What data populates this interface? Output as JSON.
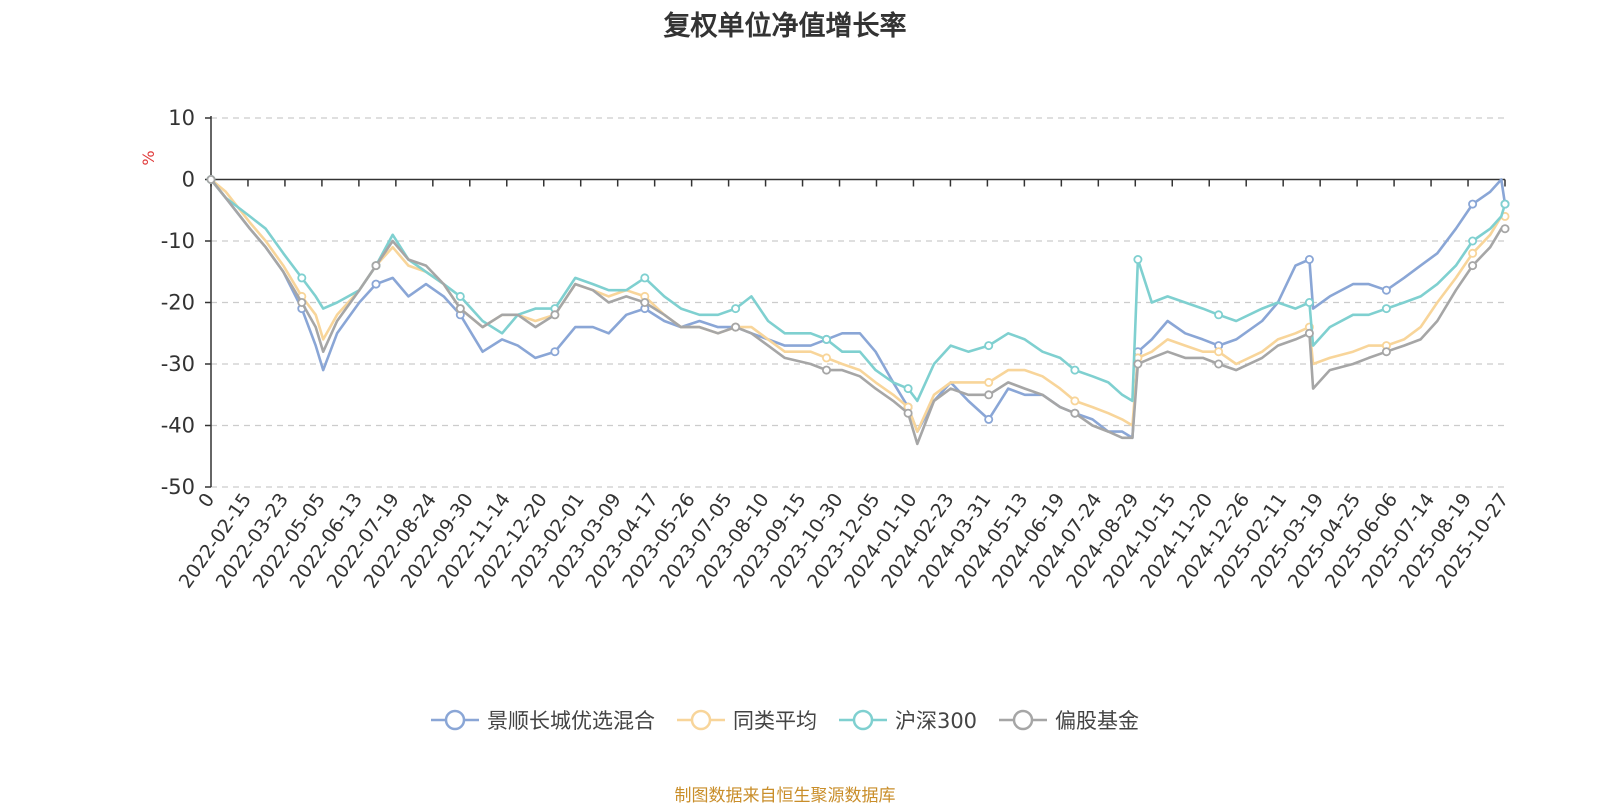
{
  "chart_data": {
    "type": "line",
    "title": "复权单位净值增长率",
    "ylabel": "%",
    "xlabel": "",
    "ylim": [
      -50,
      10
    ],
    "yticks": [
      10,
      0,
      -10,
      -20,
      -30,
      -40,
      -50
    ],
    "grid": "horizontal dashed",
    "legend_position": "bottom",
    "x_tick_labels": [
      "0",
      "2022-02-15",
      "2022-03-23",
      "2022-05-05",
      "2022-06-13",
      "2022-07-19",
      "2022-08-24",
      "2022-09-30",
      "2022-11-14",
      "2022-12-20",
      "2023-02-01",
      "2023-03-09",
      "2023-04-17",
      "2023-05-26",
      "2023-07-05",
      "2023-08-10",
      "2023-09-15",
      "2023-10-30",
      "2023-12-05",
      "2024-01-10",
      "2024-02-23",
      "2024-03-31",
      "2024-05-13",
      "2024-06-19",
      "2024-07-24",
      "2024-08-29",
      "2024-10-15",
      "2024-11-20",
      "2024-12-26",
      "2025-02-11",
      "2025-03-19",
      "2025-04-25",
      "2025-06-06",
      "2025-07-14",
      "2025-08-19",
      "2025-10-27"
    ],
    "x": [
      "2022-01-04",
      "2022-01-20",
      "2022-02-15",
      "2022-03-04",
      "2022-03-23",
      "2022-04-12",
      "2022-04-27",
      "2022-05-05",
      "2022-05-20",
      "2022-06-13",
      "2022-07-01",
      "2022-07-19",
      "2022-08-05",
      "2022-08-24",
      "2022-09-12",
      "2022-09-30",
      "2022-10-24",
      "2022-11-14",
      "2022-12-01",
      "2022-12-20",
      "2023-01-10",
      "2023-02-01",
      "2023-02-20",
      "2023-03-09",
      "2023-03-28",
      "2023-04-17",
      "2023-05-08",
      "2023-05-26",
      "2023-06-15",
      "2023-07-05",
      "2023-07-24",
      "2023-08-10",
      "2023-08-28",
      "2023-09-15",
      "2023-10-13",
      "2023-10-30",
      "2023-11-16",
      "2023-12-05",
      "2023-12-22",
      "2024-01-10",
      "2024-01-26",
      "2024-02-05",
      "2024-02-23",
      "2024-03-12",
      "2024-03-31",
      "2024-04-22",
      "2024-05-13",
      "2024-05-31",
      "2024-06-19",
      "2024-07-08",
      "2024-07-24",
      "2024-08-12",
      "2024-08-29",
      "2024-09-13",
      "2024-09-24",
      "2024-09-30",
      "2024-10-15",
      "2024-11-01",
      "2024-11-20",
      "2024-12-09",
      "2024-12-26",
      "2025-01-14",
      "2025-02-11",
      "2025-02-28",
      "2025-03-19",
      "2025-04-03",
      "2025-04-07",
      "2025-04-25",
      "2025-05-20",
      "2025-06-06",
      "2025-06-25",
      "2025-07-14",
      "2025-08-01",
      "2025-08-19",
      "2025-09-08",
      "2025-09-26",
      "2025-10-15",
      "2025-10-27",
      "2025-10-31"
    ],
    "series": [
      {
        "name": "景顺长城优选混合",
        "color": "#8aa6d6",
        "values": [
          0,
          -3,
          -8,
          -11,
          -15,
          -21,
          -27,
          -31,
          -25,
          -20,
          -17,
          -16,
          -19,
          -17,
          -19,
          -22,
          -28,
          -26,
          -27,
          -29,
          -28,
          -24,
          -24,
          -25,
          -22,
          -21,
          -23,
          -24,
          -23,
          -24,
          -24,
          -25,
          -26,
          -27,
          -27,
          -26,
          -25,
          -25,
          -28,
          -33,
          -37,
          -41,
          -36,
          -33,
          -36,
          -39,
          -34,
          -35,
          -35,
          -37,
          -38,
          -39,
          -41,
          -41,
          -42,
          -28,
          -26,
          -23,
          -25,
          -26,
          -27,
          -26,
          -23,
          -20,
          -14,
          -13,
          -21,
          -19,
          -17,
          -17,
          -18,
          -16,
          -14,
          -12,
          -8,
          -4,
          -2,
          0,
          -4
        ]
      },
      {
        "name": "同类平均",
        "color": "#f8d59a",
        "values": [
          0,
          -2,
          -7,
          -10,
          -14,
          -19,
          -22,
          -26,
          -22,
          -18,
          -14,
          -11,
          -14,
          -15,
          -17,
          -21,
          -24,
          -22,
          -22,
          -23,
          -22,
          -17,
          -18,
          -19,
          -18,
          -19,
          -22,
          -24,
          -24,
          -25,
          -24,
          -24,
          -26,
          -28,
          -28,
          -29,
          -30,
          -31,
          -33,
          -35,
          -37,
          -41,
          -35,
          -33,
          -33,
          -33,
          -31,
          -31,
          -32,
          -34,
          -36,
          -37,
          -38,
          -39,
          -40,
          -29,
          -28,
          -26,
          -27,
          -28,
          -28,
          -30,
          -28,
          -26,
          -25,
          -24,
          -30,
          -29,
          -28,
          -27,
          -27,
          -26,
          -24,
          -20,
          -16,
          -12,
          -9,
          -6,
          -6
        ]
      },
      {
        "name": "沪深300",
        "color": "#7fd0d0",
        "values": [
          0,
          -3,
          -6,
          -8,
          -12,
          -16,
          -19,
          -21,
          -20,
          -18,
          -14,
          -9,
          -13,
          -15,
          -17,
          -19,
          -23,
          -25,
          -22,
          -21,
          -21,
          -16,
          -17,
          -18,
          -18,
          -16,
          -19,
          -21,
          -22,
          -22,
          -21,
          -19,
          -23,
          -25,
          -25,
          -26,
          -28,
          -28,
          -31,
          -33,
          -34,
          -36,
          -30,
          -27,
          -28,
          -27,
          -25,
          -26,
          -28,
          -29,
          -31,
          -32,
          -33,
          -35,
          -36,
          -13,
          -20,
          -19,
          -20,
          -21,
          -22,
          -23,
          -21,
          -20,
          -21,
          -20,
          -27,
          -24,
          -22,
          -22,
          -21,
          -20,
          -19,
          -17,
          -14,
          -10,
          -8,
          -6,
          -4
        ]
      },
      {
        "name": "偏股基金",
        "color": "#a6a6a6",
        "values": [
          0,
          -3,
          -8,
          -11,
          -15,
          -20,
          -24,
          -28,
          -23,
          -18,
          -14,
          -10,
          -13,
          -14,
          -17,
          -21,
          -24,
          -22,
          -22,
          -24,
          -22,
          -17,
          -18,
          -20,
          -19,
          -20,
          -22,
          -24,
          -24,
          -25,
          -24,
          -25,
          -27,
          -29,
          -30,
          -31,
          -31,
          -32,
          -34,
          -36,
          -38,
          -43,
          -36,
          -34,
          -35,
          -35,
          -33,
          -34,
          -35,
          -37,
          -38,
          -40,
          -41,
          -42,
          -42,
          -30,
          -29,
          -28,
          -29,
          -29,
          -30,
          -31,
          -29,
          -27,
          -26,
          -25,
          -34,
          -31,
          -30,
          -29,
          -28,
          -27,
          -26,
          -23,
          -18,
          -14,
          -11,
          -8,
          -8
        ]
      }
    ]
  },
  "source_note": "制图数据来自恒生聚源数据库"
}
